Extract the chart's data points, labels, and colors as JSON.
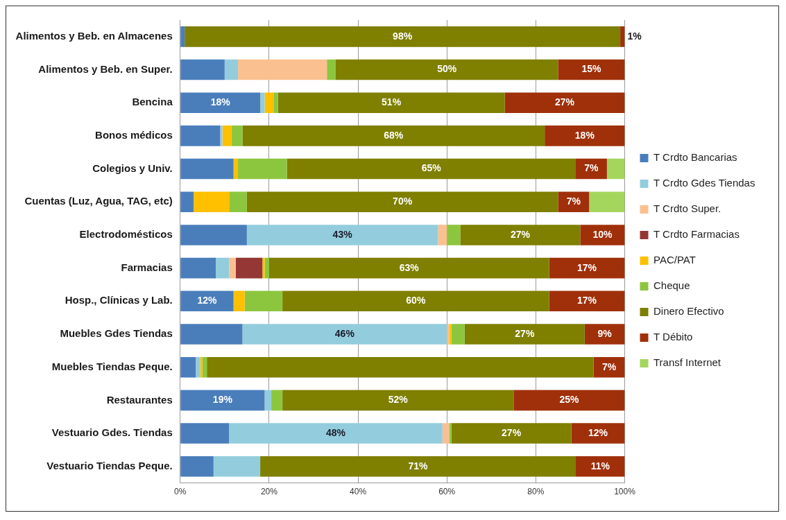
{
  "chart_data": {
    "type": "bar",
    "orientation": "horizontal",
    "stacked": true,
    "legend": "right",
    "grid": "x",
    "categories": [
      "Alimentos y Beb. en Almacenes",
      "Alimentos y Beb. en Super.",
      "Bencina",
      "Bonos médicos",
      "Colegios y Univ.",
      "Cuentas (Luz, Agua, TAG, etc)",
      "Electrodomésticos",
      "Farmacias",
      "Hosp., Clínicas y Lab.",
      "Muebles Gdes Tiendas",
      "Muebles Tiendas Peque.",
      "Restaurantes",
      "Vestuario Gdes. Tiendas",
      "Vestuario Tiendas Peque."
    ],
    "xlim": [
      0,
      100
    ],
    "xticks": [
      {
        "value": 0,
        "label": "0%"
      },
      {
        "value": 20,
        "label": "20%"
      },
      {
        "value": 40,
        "label": "40%"
      },
      {
        "value": 60,
        "label": "60%"
      },
      {
        "value": 80,
        "label": "80%"
      },
      {
        "value": 100,
        "label": "100%"
      }
    ],
    "series": [
      {
        "name": "T Crdto Bancarias",
        "color": "#4a7ebb",
        "values": [
          1,
          10,
          18,
          9,
          12,
          3,
          15,
          8,
          12,
          14,
          3.5,
          19,
          11,
          7.5
        ],
        "value_labels": [
          null,
          null,
          "18%",
          null,
          null,
          null,
          null,
          null,
          "12%",
          null,
          null,
          "19%",
          null,
          null
        ]
      },
      {
        "name": "T Crdto Gdes Tiendas",
        "color": "#93cddd",
        "values": [
          0,
          3,
          1,
          0.5,
          0,
          0,
          43,
          3,
          0,
          46,
          1,
          1.5,
          48,
          10.5
        ],
        "value_labels": [
          null,
          null,
          null,
          null,
          null,
          null,
          "43%",
          null,
          null,
          "46%",
          null,
          null,
          "48%",
          null
        ]
      },
      {
        "name": "T Crdto Super.",
        "color": "#fac090",
        "values": [
          0,
          20,
          0,
          0,
          0,
          0,
          2,
          1.5,
          0,
          0.5,
          0,
          0,
          1.5,
          0
        ]
      },
      {
        "name": "T Crdto Farmacias",
        "color": "#953735",
        "values": [
          0,
          0,
          0,
          0,
          0,
          0,
          0,
          6,
          0,
          0,
          0,
          0,
          0,
          0
        ]
      },
      {
        "name": "PAC/PAT",
        "color": "#ffc000",
        "values": [
          0,
          0,
          2,
          2,
          1,
          8,
          0,
          0.5,
          2.5,
          0.5,
          0.5,
          0,
          0,
          0
        ]
      },
      {
        "name": "Cheque",
        "color": "#8cc63f",
        "values": [
          0,
          2,
          1,
          2.5,
          11,
          4,
          3,
          1,
          8.5,
          3,
          1,
          2.5,
          0.5,
          0
        ]
      },
      {
        "name": "Dinero Efectivo",
        "color": "#7f7f00",
        "values": [
          98,
          50,
          51,
          68,
          65,
          70,
          27,
          63,
          60,
          27,
          87,
          52,
          27,
          71
        ],
        "value_labels": [
          "98%",
          "50%",
          "51%",
          "68%",
          "65%",
          "70%",
          "27%",
          "63%",
          "60%",
          "27%",
          null,
          "52%",
          "27%",
          "71%"
        ]
      },
      {
        "name": "T Débito",
        "color": "#a0300a",
        "values": [
          1,
          15,
          27,
          18,
          7,
          7,
          10,
          17,
          17,
          9,
          7,
          25,
          12,
          11
        ],
        "value_labels": [
          "1%",
          "15%",
          "27%",
          "18%",
          "7%",
          "7%",
          "10%",
          "17%",
          "17%",
          "9%",
          "7%",
          "25%",
          "12%",
          "11%"
        ]
      },
      {
        "name": "Transf Internet",
        "color": "#a4d65e",
        "values": [
          0,
          0,
          0,
          0,
          4,
          8,
          0,
          0,
          0,
          0,
          0,
          0,
          0,
          0
        ]
      }
    ]
  }
}
